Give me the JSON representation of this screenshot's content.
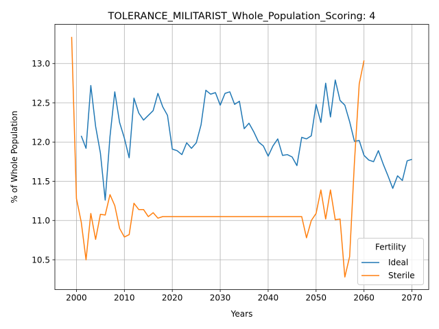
{
  "chart_data": {
    "type": "line",
    "title": "TOLERANCE_MILITARIST_Whole_Population_Scoring: 4",
    "xlabel": "Years",
    "ylabel": "% of Whole Population",
    "xlim": [
      1995.5,
      2073.5
    ],
    "ylim": [
      10.12,
      13.5
    ],
    "xticks": [
      2000,
      2010,
      2020,
      2030,
      2040,
      2050,
      2060,
      2070
    ],
    "yticks": [
      10.5,
      11.0,
      11.5,
      12.0,
      12.5,
      13.0
    ],
    "grid": true,
    "legend": {
      "title": "Fertility",
      "position": "lower right"
    },
    "series": [
      {
        "name": "Ideal",
        "color": "#1f77b4",
        "x": [
          2001,
          2002,
          2003,
          2004,
          2005,
          2006,
          2007,
          2008,
          2009,
          2010,
          2011,
          2012,
          2013,
          2014,
          2015,
          2016,
          2017,
          2018,
          2019,
          2020,
          2021,
          2022,
          2023,
          2024,
          2025,
          2026,
          2027,
          2028,
          2029,
          2030,
          2031,
          2032,
          2033,
          2034,
          2035,
          2036,
          2037,
          2038,
          2039,
          2040,
          2041,
          2042,
          2043,
          2044,
          2045,
          2046,
          2047,
          2048,
          2049,
          2050,
          2051,
          2052,
          2053,
          2054,
          2055,
          2056,
          2057,
          2058,
          2059,
          2060,
          2061,
          2062,
          2063,
          2064,
          2065,
          2066,
          2067,
          2068,
          2069,
          2070
        ],
        "values": [
          12.08,
          11.92,
          12.72,
          12.2,
          11.86,
          11.26,
          12.07,
          12.64,
          12.25,
          12.05,
          11.8,
          12.56,
          12.37,
          12.28,
          12.34,
          12.4,
          12.62,
          12.45,
          12.34,
          11.91,
          11.89,
          11.84,
          11.99,
          11.92,
          11.99,
          12.22,
          12.66,
          12.61,
          12.63,
          12.47,
          12.62,
          12.64,
          12.48,
          12.52,
          12.17,
          12.24,
          12.13,
          12.0,
          11.95,
          11.82,
          11.95,
          12.04,
          11.83,
          11.84,
          11.81,
          11.7,
          12.06,
          12.04,
          12.08,
          12.48,
          12.25,
          12.75,
          12.32,
          12.79,
          12.53,
          12.47,
          12.26,
          12.01,
          12.02,
          11.83,
          11.77,
          11.75,
          11.89,
          11.72,
          11.57,
          11.41,
          11.57,
          11.51,
          11.76,
          11.78
        ]
      },
      {
        "name": "Sterile",
        "color": "#ff7f0e",
        "x": [
          1999,
          2000,
          2001,
          2002,
          2003,
          2004,
          2005,
          2006,
          2007,
          2008,
          2009,
          2010,
          2011,
          2012,
          2013,
          2014,
          2015,
          2016,
          2017,
          2018,
          2019,
          2020,
          2021,
          2022,
          2023,
          2024,
          2025,
          2026,
          2027,
          2028,
          2029,
          2030,
          2031,
          2032,
          2033,
          2034,
          2035,
          2036,
          2037,
          2038,
          2039,
          2040,
          2041,
          2042,
          2043,
          2044,
          2045,
          2046,
          2047,
          2048,
          2049,
          2050,
          2051,
          2052,
          2053,
          2054,
          2055,
          2056,
          2057,
          2058,
          2059,
          2060
        ],
        "values": [
          13.34,
          11.28,
          10.98,
          10.5,
          11.09,
          10.76,
          11.08,
          11.07,
          11.33,
          11.19,
          10.9,
          10.79,
          10.82,
          11.22,
          11.14,
          11.14,
          11.05,
          11.1,
          11.03,
          11.05,
          11.05,
          11.05,
          11.05,
          11.05,
          11.05,
          11.05,
          11.05,
          11.05,
          11.05,
          11.05,
          11.05,
          11.05,
          11.05,
          11.05,
          11.05,
          11.05,
          11.05,
          11.05,
          11.05,
          11.05,
          11.05,
          11.05,
          11.05,
          11.05,
          11.05,
          11.05,
          11.05,
          11.05,
          11.05,
          10.78,
          11.0,
          11.09,
          11.39,
          11.02,
          11.39,
          11.01,
          11.02,
          10.28,
          10.54,
          11.74,
          12.74,
          13.04
        ]
      }
    ]
  }
}
